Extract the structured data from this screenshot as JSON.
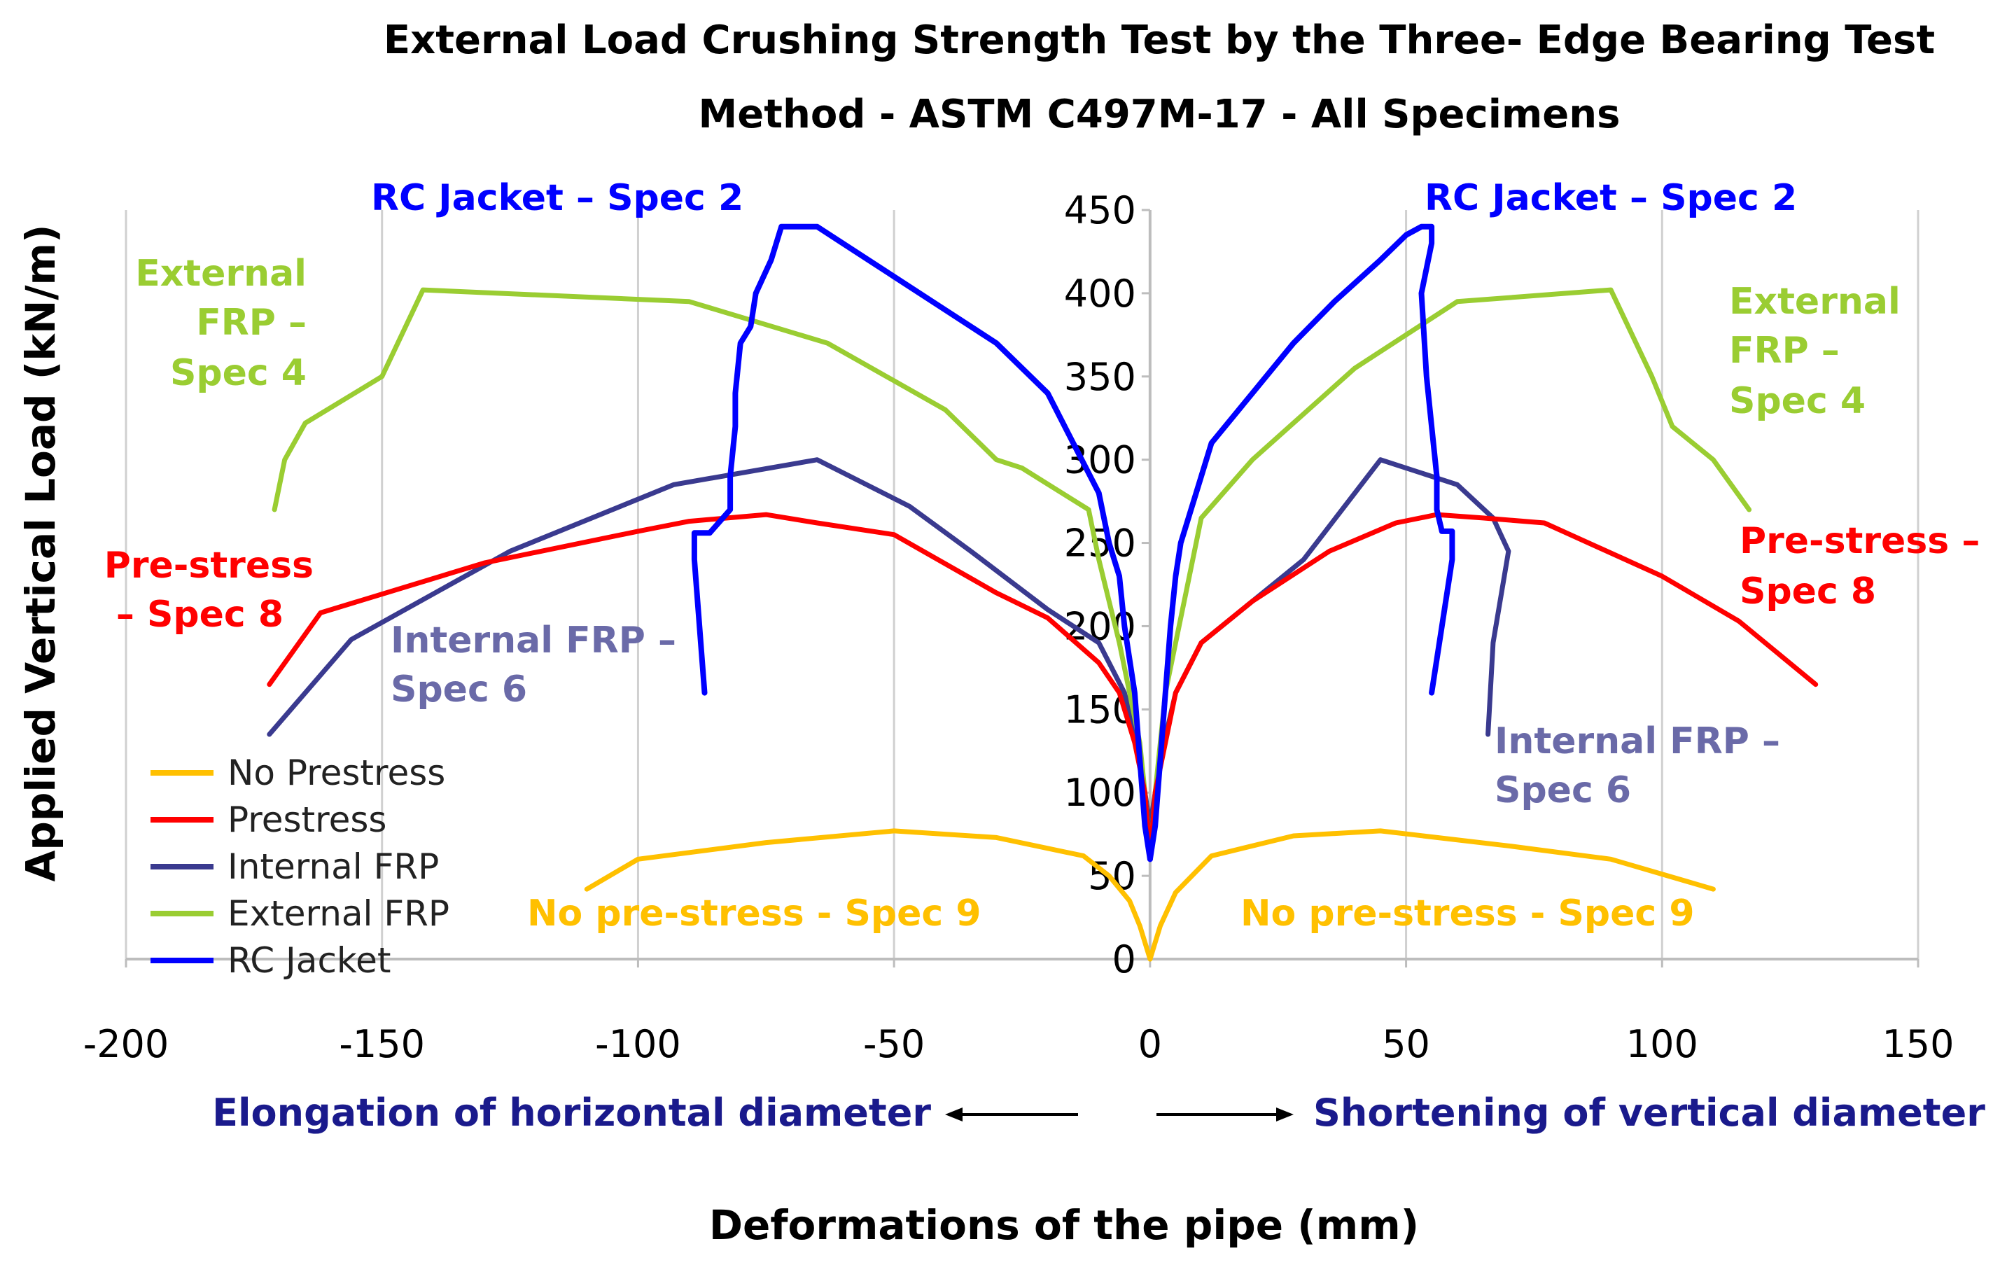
{
  "chart_data": {
    "type": "line",
    "title_lines": [
      "External Load Crushing Strength Test by the Three- Edge Bearing Test",
      "Method - ASTM C497M-17 - All Specimens"
    ],
    "xlabel": "Deformations of the pipe (mm)",
    "ylabel": "Applied Vertical Load (kN/m)",
    "xlim": [
      -200,
      150
    ],
    "ylim": [
      0,
      450
    ],
    "x_ticks": [
      "-200",
      "-150",
      "-100",
      "-50",
      "0",
      "50",
      "100",
      "150"
    ],
    "y_ticks": [
      "0",
      "50",
      "100",
      "150",
      "200",
      "250",
      "300",
      "350",
      "400",
      "450"
    ],
    "grid": "vertical",
    "direction_labels": {
      "left": "Elongation of horizontal diameter",
      "right": "Shortening of vertical diameter"
    },
    "legend": {
      "position": "bottom-left",
      "entries": [
        "No Prestress",
        "Prestress",
        "Internal FRP",
        "External FRP",
        "RC Jacket"
      ]
    },
    "series": [
      {
        "name": "No Prestress",
        "color": "#ffc000",
        "left": [
          [
            0,
            0
          ],
          [
            -2,
            20
          ],
          [
            -4,
            35
          ],
          [
            -8,
            50
          ],
          [
            -13,
            62
          ],
          [
            -30,
            73
          ],
          [
            -50,
            77
          ],
          [
            -75,
            70
          ],
          [
            -100,
            60
          ],
          [
            -110,
            42
          ]
        ],
        "right": [
          [
            0,
            0
          ],
          [
            2,
            20
          ],
          [
            5,
            40
          ],
          [
            12,
            62
          ],
          [
            28,
            74
          ],
          [
            45,
            77
          ],
          [
            70,
            68
          ],
          [
            90,
            60
          ],
          [
            110,
            42
          ]
        ]
      },
      {
        "name": "Prestress",
        "color": "#ff0000",
        "left": [
          [
            0,
            60
          ],
          [
            -1,
            100
          ],
          [
            -3,
            130
          ],
          [
            -6,
            160
          ],
          [
            -10,
            178
          ],
          [
            -20,
            205
          ],
          [
            -30,
            220
          ],
          [
            -50,
            255
          ],
          [
            -65,
            262
          ],
          [
            -75,
            267
          ],
          [
            -90,
            263
          ],
          [
            -100,
            257
          ],
          [
            -130,
            238
          ],
          [
            -162,
            208
          ],
          [
            -172,
            165
          ]
        ],
        "right": [
          [
            0,
            60
          ],
          [
            1,
            100
          ],
          [
            3,
            130
          ],
          [
            5,
            160
          ],
          [
            10,
            190
          ],
          [
            20,
            215
          ],
          [
            35,
            245
          ],
          [
            48,
            262
          ],
          [
            56,
            267
          ],
          [
            65,
            265
          ],
          [
            77,
            262
          ],
          [
            100,
            230
          ],
          [
            115,
            203
          ],
          [
            130,
            165
          ]
        ]
      },
      {
        "name": "Internal FRP",
        "color": "#3a3a8f",
        "left": [
          [
            0,
            80
          ],
          [
            -2,
            120
          ],
          [
            -5,
            160
          ],
          [
            -10,
            190
          ],
          [
            -20,
            210
          ],
          [
            -35,
            245
          ],
          [
            -47,
            272
          ],
          [
            -65,
            300
          ],
          [
            -93,
            285
          ],
          [
            -125,
            245
          ],
          [
            -156,
            192
          ],
          [
            -172,
            135
          ]
        ],
        "right": [
          [
            0,
            80
          ],
          [
            2,
            120
          ],
          [
            5,
            160
          ],
          [
            10,
            190
          ],
          [
            20,
            215
          ],
          [
            30,
            240
          ],
          [
            45,
            300
          ],
          [
            60,
            285
          ],
          [
            67,
            265
          ],
          [
            70,
            245
          ],
          [
            67,
            190
          ],
          [
            66,
            135
          ]
        ]
      },
      {
        "name": "External FRP",
        "color": "#9acd32",
        "left": [
          [
            0,
            60
          ],
          [
            -1,
            100
          ],
          [
            -2,
            130
          ],
          [
            -4,
            160
          ],
          [
            -6,
            190
          ],
          [
            -8,
            215
          ],
          [
            -10,
            240
          ],
          [
            -12,
            270
          ],
          [
            -25,
            295
          ],
          [
            -30,
            300
          ],
          [
            -40,
            330
          ],
          [
            -63,
            370
          ],
          [
            -90,
            395
          ],
          [
            -142,
            402
          ],
          [
            -150,
            350
          ],
          [
            -165,
            322
          ],
          [
            -169,
            300
          ],
          [
            -171,
            270
          ]
        ],
        "right": [
          [
            0,
            60
          ],
          [
            1,
            100
          ],
          [
            2,
            130
          ],
          [
            3,
            160
          ],
          [
            5,
            190
          ],
          [
            7,
            220
          ],
          [
            10,
            265
          ],
          [
            20,
            300
          ],
          [
            40,
            355
          ],
          [
            60,
            395
          ],
          [
            90,
            402
          ],
          [
            98,
            350
          ],
          [
            102,
            320
          ],
          [
            110,
            300
          ],
          [
            117,
            270
          ]
        ]
      },
      {
        "name": "RC Jacket",
        "color": "#0000ff",
        "left": [
          [
            0,
            60
          ],
          [
            -1,
            80
          ],
          [
            -2,
            120
          ],
          [
            -3,
            160
          ],
          [
            -5,
            200
          ],
          [
            -6,
            230
          ],
          [
            -8,
            250
          ],
          [
            -10,
            280
          ],
          [
            -15,
            310
          ],
          [
            -20,
            340
          ],
          [
            -30,
            370
          ],
          [
            -40,
            390
          ],
          [
            -50,
            410
          ],
          [
            -60,
            430
          ],
          [
            -65,
            440
          ],
          [
            -70,
            440
          ],
          [
            -72,
            440
          ],
          [
            -74,
            420
          ],
          [
            -77,
            400
          ],
          [
            -78,
            380
          ],
          [
            -80,
            370
          ],
          [
            -81,
            340
          ],
          [
            -81,
            320
          ],
          [
            -82,
            290
          ],
          [
            -82,
            270
          ],
          [
            -86,
            256
          ],
          [
            -89,
            256
          ],
          [
            -89,
            240
          ],
          [
            -88,
            200
          ],
          [
            -87,
            160
          ]
        ],
        "right": [
          [
            0,
            60
          ],
          [
            1,
            80
          ],
          [
            2,
            120
          ],
          [
            3,
            160
          ],
          [
            4,
            200
          ],
          [
            5,
            230
          ],
          [
            6,
            250
          ],
          [
            9,
            280
          ],
          [
            12,
            310
          ],
          [
            20,
            340
          ],
          [
            28,
            370
          ],
          [
            36,
            395
          ],
          [
            45,
            420
          ],
          [
            50,
            435
          ],
          [
            53,
            440
          ],
          [
            55,
            440
          ],
          [
            55,
            430
          ],
          [
            53,
            400
          ],
          [
            54,
            350
          ],
          [
            55,
            320
          ],
          [
            56,
            290
          ],
          [
            56,
            270
          ],
          [
            57,
            257
          ],
          [
            59,
            257
          ],
          [
            59,
            240
          ],
          [
            57,
            200
          ],
          [
            55,
            160
          ]
        ]
      }
    ],
    "annotations": [
      {
        "text": "RC Jacket –  Spec 2",
        "color": "#0000ff"
      },
      {
        "text": "RC Jacket –  Spec 2",
        "color": "#0000ff"
      },
      {
        "text": "External",
        "color": "#9acd32"
      },
      {
        "text": "FRP –",
        "color": "#9acd32"
      },
      {
        "text": "Spec 4",
        "color": "#9acd32"
      },
      {
        "text": "External",
        "color": "#9acd32"
      },
      {
        "text": "FRP –",
        "color": "#9acd32"
      },
      {
        "text": "Spec 4",
        "color": "#9acd32"
      },
      {
        "text": "Pre-stress",
        "color": "#ff0000"
      },
      {
        "text": "– Spec 8",
        "color": "#ff0000"
      },
      {
        "text": "Pre-stress –",
        "color": "#ff0000"
      },
      {
        "text": "Spec 8",
        "color": "#ff0000"
      },
      {
        "text": "Internal FRP –",
        "color": "#6a6aa8"
      },
      {
        "text": "Spec 6",
        "color": "#6a6aa8"
      },
      {
        "text": "Internal FRP –",
        "color": "#6a6aa8"
      },
      {
        "text": "Spec 6",
        "color": "#6a6aa8"
      },
      {
        "text": "No pre-stress -  Spec 9",
        "color": "#ffc000"
      },
      {
        "text": "No pre-stress -  Spec 9",
        "color": "#ffc000"
      }
    ]
  }
}
